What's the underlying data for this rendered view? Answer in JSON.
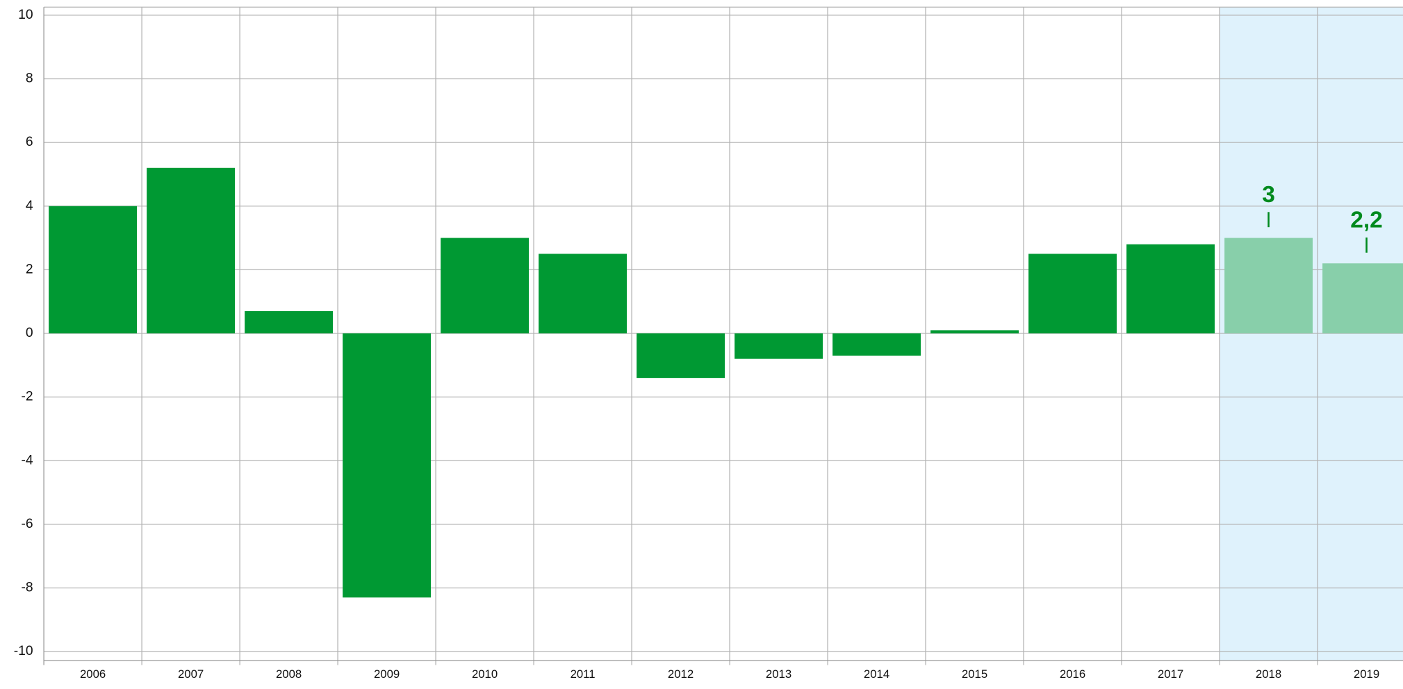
{
  "chart_data": {
    "type": "bar",
    "categories": [
      "2006",
      "2007",
      "2008",
      "2009",
      "2010",
      "2011",
      "2012",
      "2013",
      "2014",
      "2015",
      "2016",
      "2017",
      "2018",
      "2019"
    ],
    "values": [
      4.0,
      5.2,
      0.7,
      -8.3,
      3.0,
      2.5,
      -1.4,
      -0.8,
      -0.7,
      0.1,
      2.5,
      2.8,
      3,
      2.2
    ],
    "value_labels": [
      null,
      null,
      null,
      null,
      null,
      null,
      null,
      null,
      null,
      null,
      null,
      null,
      "3",
      "2,2"
    ],
    "colors": [
      "#009933",
      "#009933",
      "#009933",
      "#009933",
      "#009933",
      "#009933",
      "#009933",
      "#009933",
      "#009933",
      "#009933",
      "#009933",
      "#009933",
      "#88cfaa",
      "#88cfaa"
    ],
    "band_colors": [
      null,
      null,
      null,
      null,
      null,
      null,
      null,
      null,
      null,
      null,
      null,
      null,
      "#dff2fc",
      "#dff2fc"
    ],
    "label_color": "#008a1e",
    "ylim": [
      -10,
      10
    ],
    "yticks": [
      -10,
      -8,
      -6,
      -4,
      -2,
      0,
      2,
      4,
      6,
      8,
      10
    ],
    "grid": true
  }
}
